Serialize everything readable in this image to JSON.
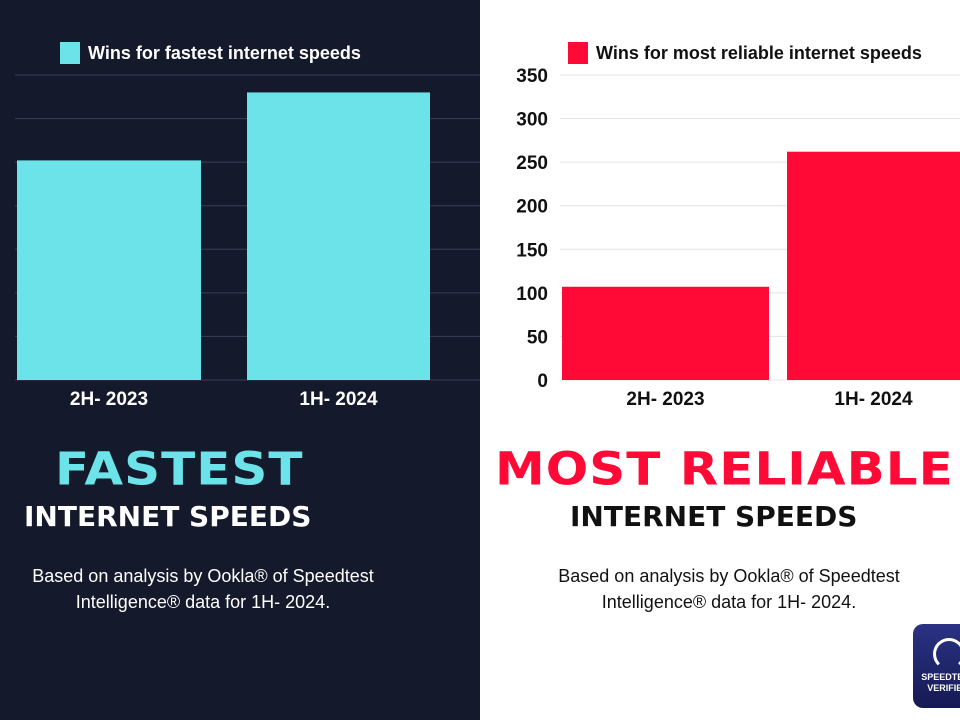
{
  "chart_data": [
    {
      "type": "bar",
      "legend": "Wins for fastest internet speeds",
      "categories": [
        "2H- 2023",
        "1H- 2024"
      ],
      "values": [
        252,
        330
      ],
      "ylim": [
        0,
        350
      ],
      "yticks": [
        0,
        50,
        100,
        150,
        200,
        250,
        300,
        350
      ],
      "color": "#6ce3e8",
      "grid": true,
      "legend_position": "top"
    },
    {
      "type": "bar",
      "legend": "Wins for most reliable internet speeds",
      "categories": [
        "2H- 2023",
        "1H- 2024"
      ],
      "values": [
        107,
        262
      ],
      "ylim": [
        0,
        350
      ],
      "yticks": [
        0,
        50,
        100,
        150,
        200,
        250,
        300,
        350
      ],
      "color": "#ff0a37",
      "grid": true,
      "legend_position": "top"
    }
  ],
  "left": {
    "headline": "FASTEST",
    "subhead": "INTERNET SPEEDS",
    "note1": "Based on analysis by Ookla® of Speedtest",
    "note2": "Intelligence® data for 1H- 2024."
  },
  "right": {
    "headline": "MOST RELIABLE",
    "subhead": "INTERNET SPEEDS",
    "note1": "Based on analysis by Ookla® of Speedtest",
    "note2": "Intelligence® data for 1H- 2024."
  },
  "badge": {
    "line1": "SPEEDTEST",
    "line2": "VERIFIED"
  }
}
